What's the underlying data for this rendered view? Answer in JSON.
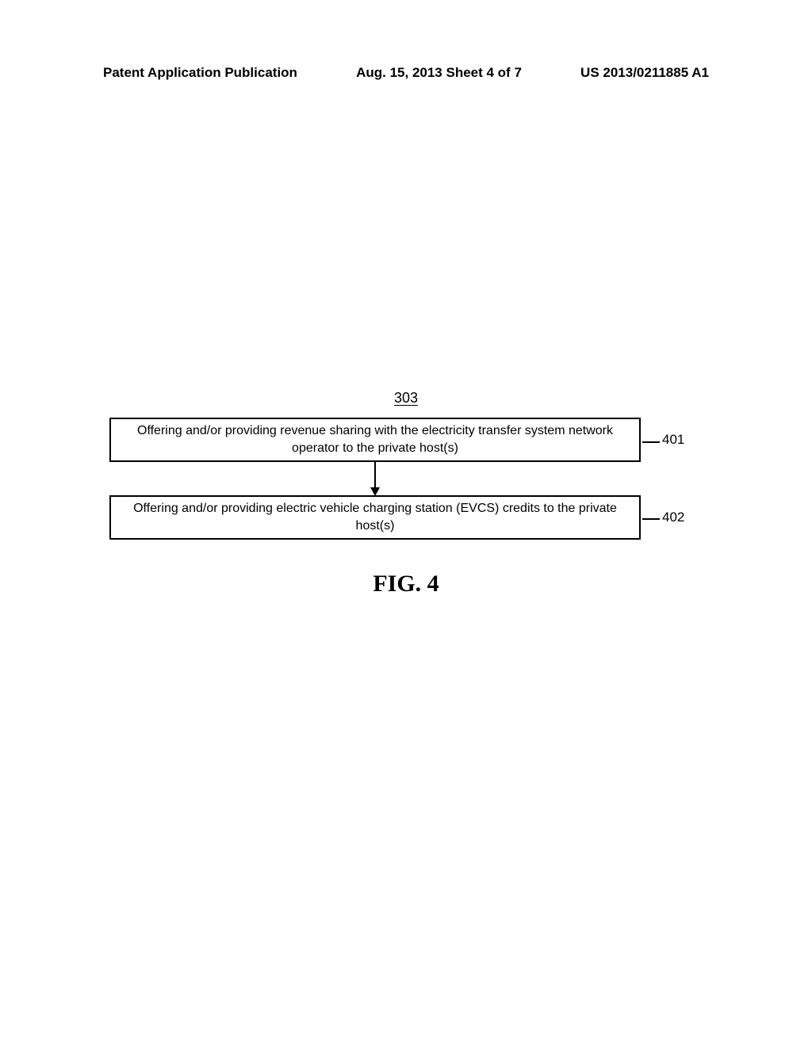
{
  "header": {
    "left": "Patent Application Publication",
    "center": "Aug. 15, 2013  Sheet 4 of 7",
    "right": "US 2013/0211885 A1"
  },
  "diagram": {
    "fig_number": "303",
    "box1": {
      "text": "Offering and/or providing revenue sharing with the electricity transfer system network operator to the private host(s)",
      "ref": "401"
    },
    "box2": {
      "text": "Offering and/or providing electric vehicle charging station (EVCS) credits to the private host(s)",
      "ref": "402"
    },
    "caption": "FIG. 4"
  },
  "colors": {
    "background": "#ffffff",
    "text": "#000000",
    "border": "#000000"
  }
}
